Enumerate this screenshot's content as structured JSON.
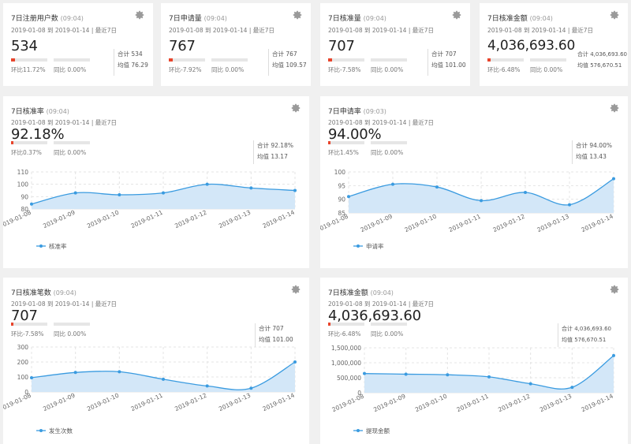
{
  "stat_cards": [
    {
      "title": "7日注册用户数",
      "time": "(09:04)",
      "date": "2019-01-08 到 2019-01-14 | 最近7日",
      "value": "534",
      "ring": "环比11.72%",
      "yoy": "同比 0.00%",
      "total": "合计 534",
      "avg": "均值 76.29"
    },
    {
      "title": "7日申请量",
      "time": "(09:04)",
      "date": "2019-01-08 到 2019-01-14 | 最近7日",
      "value": "767",
      "ring": "环比-7.92%",
      "yoy": "同比 0.00%",
      "total": "合计 767",
      "avg": "均值 109.57"
    },
    {
      "title": "7日核准量",
      "time": "(09:04)",
      "date": "2019-01-08 到 2019-01-14 | 最近7日",
      "value": "707",
      "ring": "环比-7.58%",
      "yoy": "同比 0.00%",
      "total": "合计 707",
      "avg": "均值 101.00"
    },
    {
      "title": "7日核准金额",
      "time": "(09:04)",
      "date": "2019-01-08 到 2019-01-14 | 最近7日",
      "value": "4,036,693.60",
      "ring": "环比-6.48%",
      "yoy": "同比 0.00%",
      "total": "合计 4,036,693.60",
      "avg": "均值 576,670.51"
    }
  ],
  "chart_cards": [
    {
      "title": "7日核准率",
      "time": "(09:04)",
      "date": "2019-01-08 到 2019-01-14 | 最近7日",
      "value": "92.18%",
      "ring": "环比0.37%",
      "yoy": "同比 0.00%",
      "total": "合计 92.18%",
      "avg": "均值 13.17",
      "legend": "核准率"
    },
    {
      "title": "7日申请率",
      "time": "(09:03)",
      "date": "2019-01-08 到 2019-01-14 | 最近7日",
      "value": "94.00%",
      "ring": "环比1.45%",
      "yoy": "同比 0.00%",
      "total": "合计 94.00%",
      "avg": "均值 13.43",
      "legend": "申请率"
    },
    {
      "title": "7日核准笔数",
      "time": "(09:04)",
      "date": "2019-01-08 到 2019-01-14 | 最近7日",
      "value": "707",
      "ring": "环比-7.58%",
      "yoy": "同比 0.00%",
      "total": "合计 707",
      "avg": "均值 101.00",
      "legend": "发生次数"
    },
    {
      "title": "7日核准金额",
      "time": "(09:04)",
      "date": "2019-01-08 到 2019-01-14 | 最近7日",
      "value": "4,036,693.60",
      "ring": "环比-6.48%",
      "yoy": "同比 0.00%",
      "total": "合计 4,036,693.60",
      "avg": "均值 576,670.51",
      "legend": "提现金额"
    }
  ],
  "colors": {
    "line": "#3a9be0",
    "area": "#d3e7f8",
    "bar_fill": "#e8452c",
    "bar_track": "#e6e6e6",
    "grid": "#e4e4e4"
  },
  "chart_data": [
    {
      "type": "area",
      "x": [
        "2019-01-08",
        "2019-01-09",
        "2019-01-10",
        "2019-01-11",
        "2019-01-12",
        "2019-01-13",
        "2019-01-14"
      ],
      "series": [
        {
          "name": "核准率",
          "values": [
            84,
            93,
            91.5,
            93,
            100,
            97,
            95
          ]
        }
      ],
      "yticks": [
        80,
        90,
        100,
        110
      ],
      "ylim": [
        80,
        110
      ]
    },
    {
      "type": "area",
      "x": [
        "2019-01-08",
        "2019-01-09",
        "2019-01-10",
        "2019-01-11",
        "2019-01-12",
        "2019-01-13",
        "2019-01-14"
      ],
      "series": [
        {
          "name": "申请率",
          "values": [
            91,
            95.5,
            94.5,
            89.5,
            92.5,
            88,
            97.5
          ]
        }
      ],
      "yticks": [
        85,
        90,
        95,
        100
      ],
      "ylim": [
        85,
        100
      ]
    },
    {
      "type": "area",
      "x": [
        "2019-01-08",
        "2019-01-09",
        "2019-01-10",
        "2019-01-11",
        "2019-01-12",
        "2019-01-13",
        "2019-01-14"
      ],
      "series": [
        {
          "name": "发生次数",
          "values": [
            95,
            130,
            135,
            85,
            40,
            25,
            200
          ]
        }
      ],
      "yticks": [
        0,
        100,
        200,
        300
      ],
      "ylim": [
        0,
        300
      ]
    },
    {
      "type": "area",
      "x": [
        "2019-01-08",
        "2019-01-09",
        "2019-01-10",
        "2019-01-11",
        "2019-01-12",
        "2019-01-13",
        "2019-01-14"
      ],
      "series": [
        {
          "name": "提现金额",
          "values": [
            640000,
            620000,
            600000,
            530000,
            300000,
            180000,
            1240000
          ]
        }
      ],
      "yticks": [
        0,
        500000,
        1000000,
        1500000
      ],
      "ytick_labels": [
        "0",
        "500,000",
        "1,000,000",
        "1,500,000"
      ],
      "ylim": [
        0,
        1500000
      ]
    }
  ]
}
